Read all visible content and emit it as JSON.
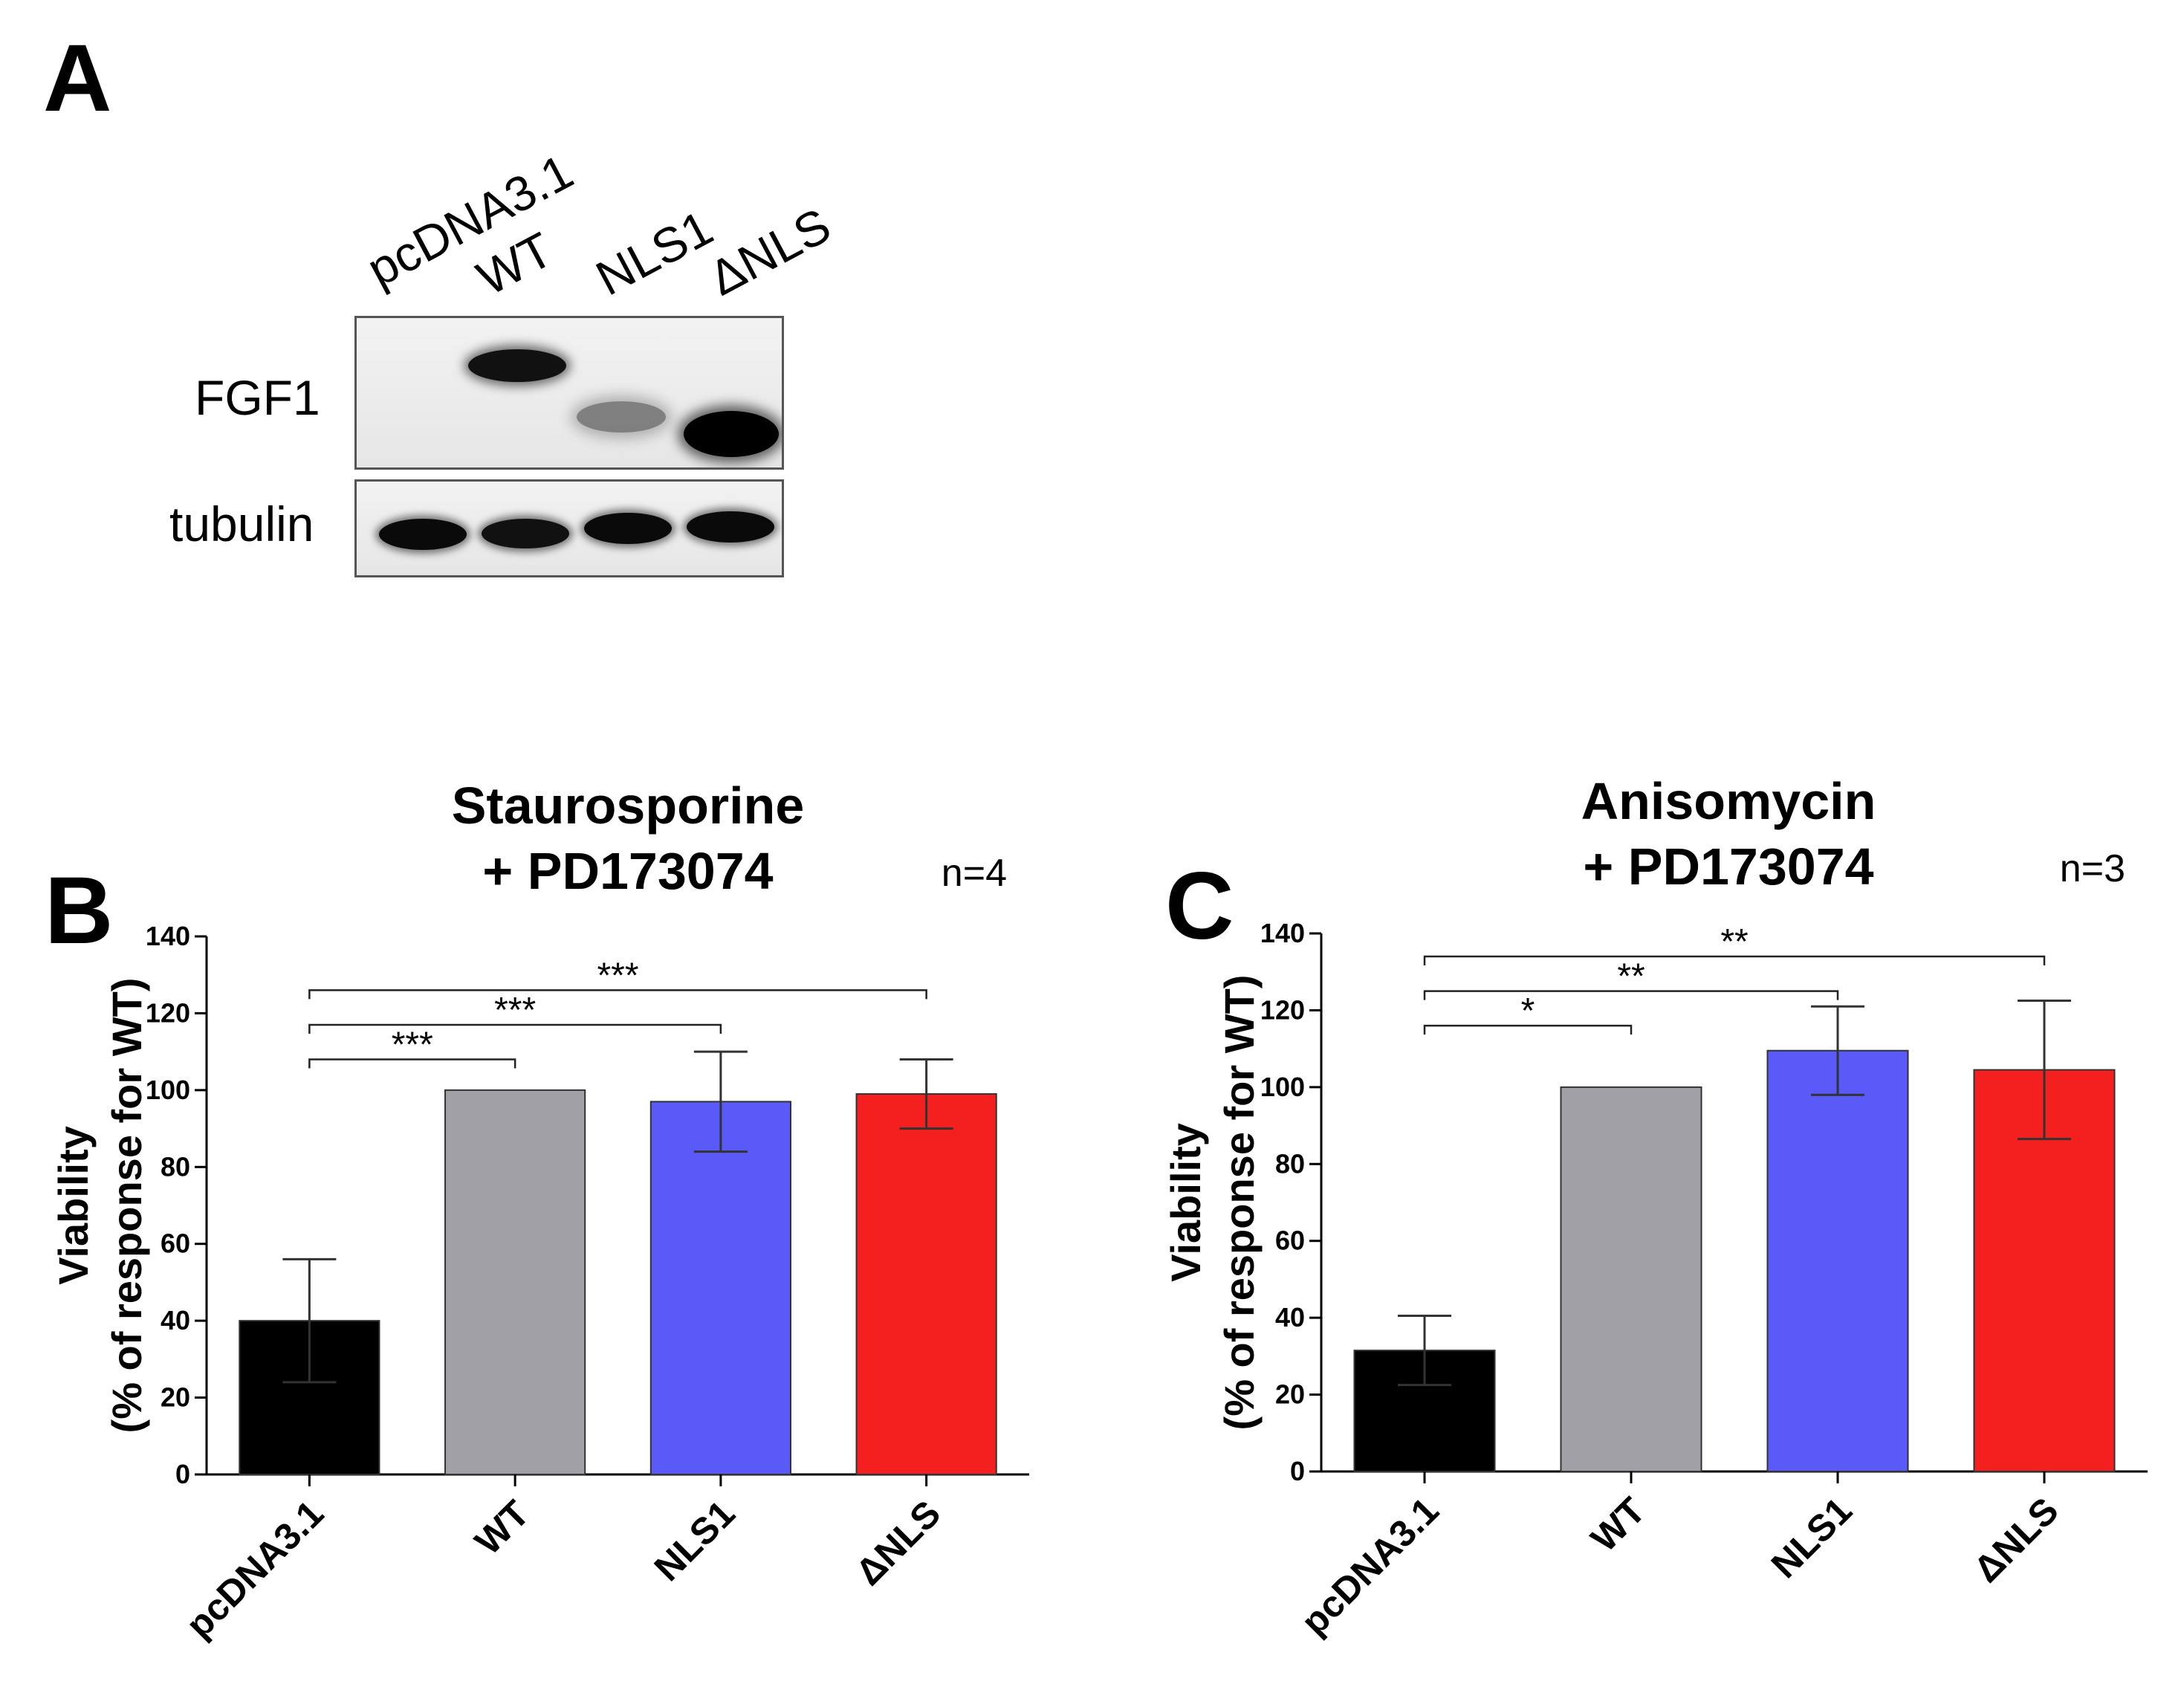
{
  "panel_letters": {
    "a": "A",
    "b": "B",
    "c": "C"
  },
  "blot": {
    "lanes": [
      "pcDNA3.1",
      "WT",
      "NLS1",
      "ΔNLS"
    ],
    "rows": [
      "FGF1",
      "tubulin"
    ]
  },
  "chart_data": [
    {
      "type": "bar",
      "panel": "B",
      "title": "Staurosporine\n+ PD173074",
      "title_lines": [
        "Staurosporine",
        "+ PD173074"
      ],
      "n_label": "n=4",
      "xlabel": "",
      "ylabel": "Viability\n(% of response for WT)",
      "ylabel_lines": [
        "Viability",
        "(% of response for WT)"
      ],
      "ylim": [
        0,
        140
      ],
      "yticks": [
        0,
        20,
        40,
        60,
        80,
        100,
        120,
        140
      ],
      "categories": [
        "pcDNA3.1",
        "WT",
        "NLS1",
        "ΔNLS"
      ],
      "values": [
        40,
        100,
        97,
        99
      ],
      "errors": [
        16,
        0,
        13,
        9
      ],
      "colors": [
        "#000000",
        "#a0a0a6",
        "#5a5af8",
        "#f41f1f"
      ],
      "significance": [
        {
          "from": 0,
          "to": 1,
          "label": "***",
          "y": 108
        },
        {
          "from": 0,
          "to": 2,
          "label": "***",
          "y": 117
        },
        {
          "from": 0,
          "to": 3,
          "label": "***",
          "y": 126
        }
      ]
    },
    {
      "type": "bar",
      "panel": "C",
      "title": "Anisomycin\n+ PD173074",
      "title_lines": [
        "Anisomycin",
        "+ PD173074"
      ],
      "n_label": "n=3",
      "xlabel": "",
      "ylabel": "Viability\n(% of response for WT)",
      "ylabel_lines": [
        "Viability",
        "(% of response for WT)"
      ],
      "ylim": [
        0,
        140
      ],
      "yticks": [
        0,
        20,
        40,
        60,
        80,
        100,
        120,
        140
      ],
      "categories": [
        "pcDNA3.1",
        "WT",
        "NLS1",
        "ΔNLS"
      ],
      "values": [
        31.5,
        100,
        109.5,
        104.5
      ],
      "errors": [
        9,
        0,
        11.5,
        18
      ],
      "colors": [
        "#000000",
        "#a0a0a6",
        "#5a5af8",
        "#f41f1f"
      ],
      "significance": [
        {
          "from": 0,
          "to": 1,
          "label": "*",
          "y": 116
        },
        {
          "from": 0,
          "to": 2,
          "label": "**",
          "y": 125
        },
        {
          "from": 0,
          "to": 3,
          "label": "**",
          "y": 134
        }
      ]
    }
  ]
}
